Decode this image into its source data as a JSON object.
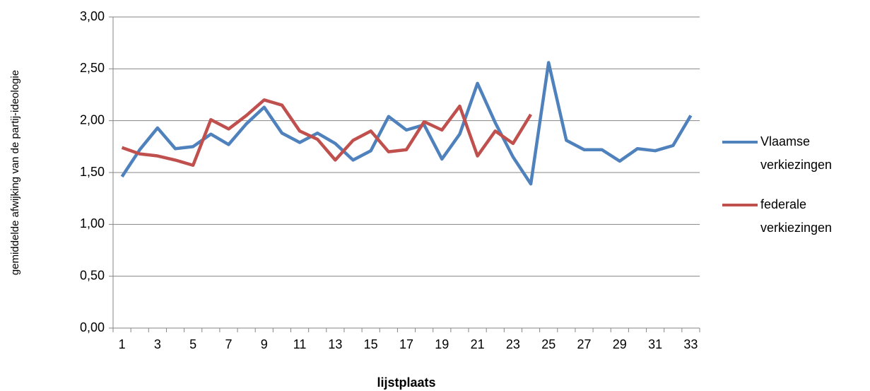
{
  "chart_data": {
    "type": "line",
    "x_label": "lijstplaats",
    "y_label": "gemiddelde afwijking van de partij-ideologie",
    "categories": [
      "1",
      null,
      "3",
      null,
      "5",
      null,
      "7",
      null,
      "9",
      null,
      "11",
      null,
      "13",
      null,
      "15",
      null,
      "17",
      null,
      "19",
      null,
      "21",
      null,
      "23",
      null,
      "25",
      null,
      "27",
      null,
      "29",
      null,
      "31",
      null,
      "33"
    ],
    "series": [
      {
        "name": "Vlaamse verkiezingen",
        "color": "#4f81bd",
        "values": [
          1.46,
          1.72,
          1.93,
          1.73,
          1.75,
          1.87,
          1.77,
          1.97,
          2.13,
          1.88,
          1.79,
          1.88,
          1.78,
          1.62,
          1.71,
          2.04,
          1.91,
          1.96,
          1.63,
          1.87,
          2.36,
          1.98,
          1.65,
          1.39,
          2.56,
          1.81,
          1.72,
          1.72,
          1.61,
          1.73,
          1.71,
          1.76,
          2.05
        ]
      },
      {
        "name": "federale verkiezingen",
        "color": "#c0504d",
        "values": [
          1.74,
          1.68,
          1.66,
          1.62,
          1.57,
          2.01,
          1.92,
          2.05,
          2.2,
          2.15,
          1.9,
          1.82,
          1.62,
          1.81,
          1.9,
          1.7,
          1.72,
          1.99,
          1.91,
          2.14,
          1.66,
          1.9,
          1.78,
          2.06,
          null,
          null,
          null,
          null,
          null,
          null,
          null,
          null,
          null
        ]
      }
    ],
    "ylim": [
      0,
      3
    ],
    "yticks": [
      {
        "value": 0,
        "label": "0,00"
      },
      {
        "value": 0.5,
        "label": "0,50"
      },
      {
        "value": 1,
        "label": "1,00"
      },
      {
        "value": 1.5,
        "label": "1,50"
      },
      {
        "value": 2,
        "label": "2,00"
      },
      {
        "value": 2.5,
        "label": "2,50"
      },
      {
        "value": 3,
        "label": "3,00"
      }
    ],
    "grid": true,
    "legend": "right"
  }
}
